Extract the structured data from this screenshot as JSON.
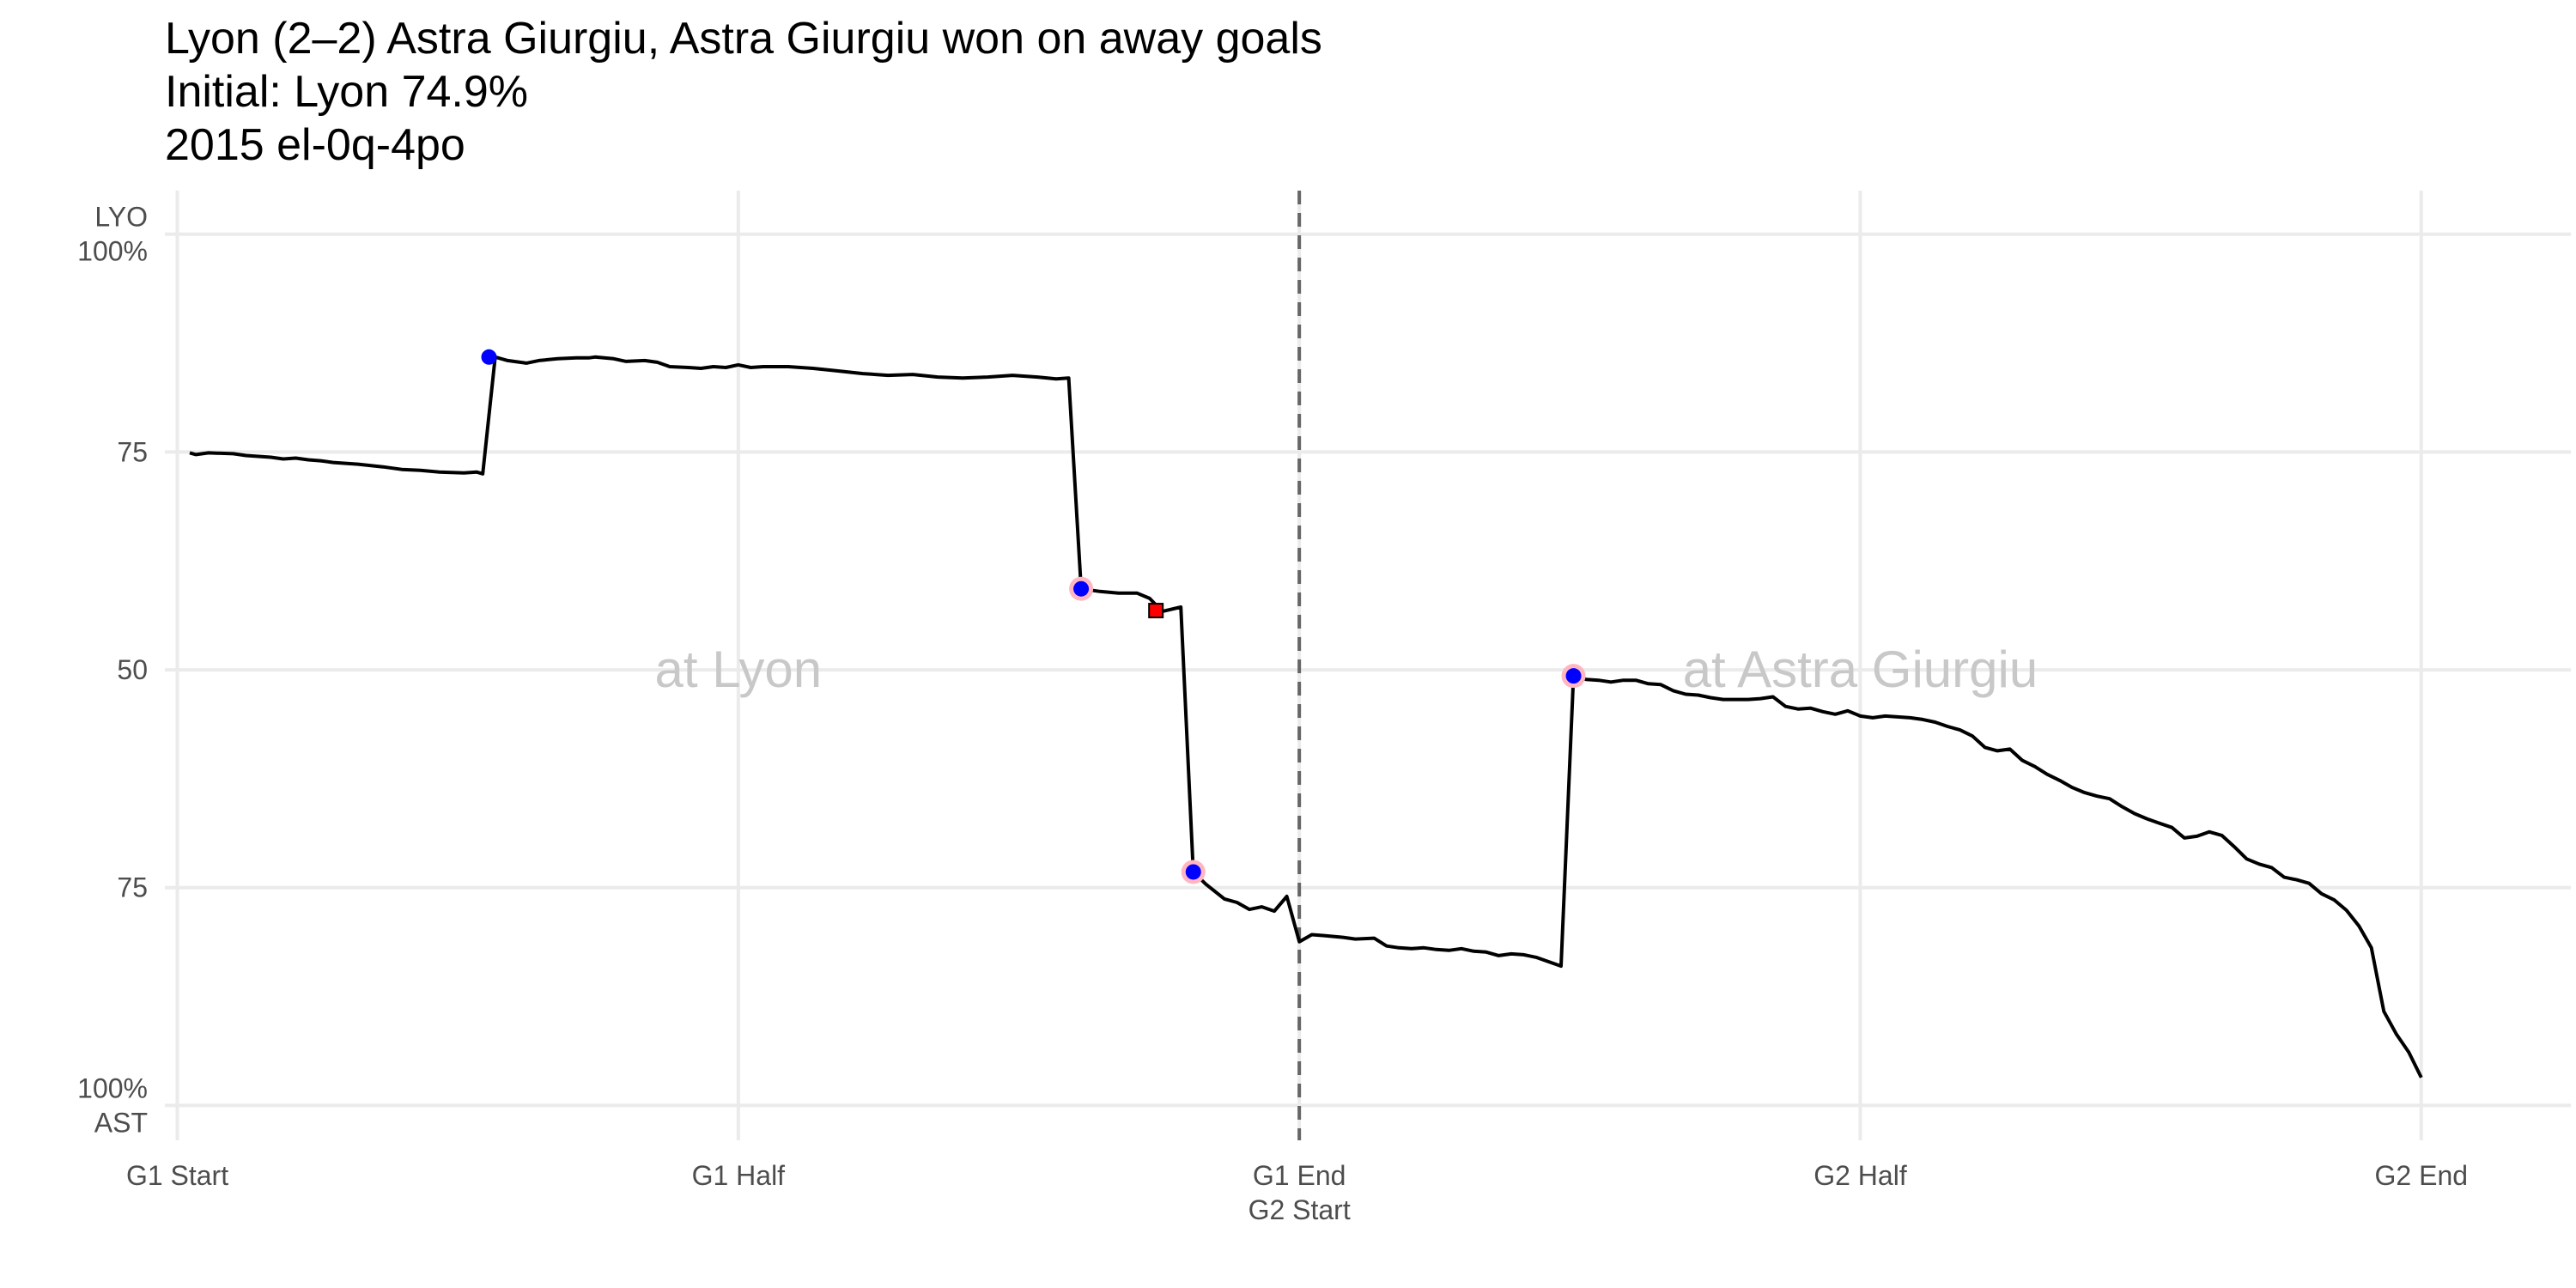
{
  "title_lines": [
    "Lyon (2–2) Astra Giurgiu, Astra Giurgiu won on away goals",
    "Initial: Lyon 74.9%",
    "2015 el-0q-4po"
  ],
  "chart_data": {
    "type": "line",
    "title": "Lyon (2–2) Astra Giurgiu, Astra Giurgiu won on away goals",
    "subtitle": [
      "Initial: Lyon 74.9%",
      "2015 el-0q-4po"
    ],
    "x_unit": "match minutes across two legs (0 = G1 Start, 90 = G1 End / G2 Start, 180 = G2 End)",
    "y_unit": "Lyon probability of advancing (%)",
    "xlim": [
      -1,
      192
    ],
    "ylim": [
      -4,
      105
    ],
    "grid": true,
    "legend": "none",
    "x_ticks": [
      {
        "x": 0,
        "lines": [
          "G1 Start"
        ]
      },
      {
        "x": 45,
        "lines": [
          "G1 Half"
        ]
      },
      {
        "x": 90,
        "lines": [
          "G1 End",
          "G2 Start"
        ]
      },
      {
        "x": 135,
        "lines": [
          "G2 Half"
        ]
      },
      {
        "x": 180,
        "lines": [
          "G2 End"
        ]
      }
    ],
    "y_ticks": [
      {
        "y": 100,
        "lines": [
          "LYO",
          "100%"
        ]
      },
      {
        "y": 75,
        "lines": [
          "75"
        ]
      },
      {
        "y": 50,
        "lines": [
          "50"
        ]
      },
      {
        "y": 25,
        "lines": [
          "75"
        ]
      },
      {
        "y": 0,
        "lines": [
          "100%",
          "AST"
        ]
      }
    ],
    "divider": {
      "x": 90,
      "style": "dashed"
    },
    "annotations": [
      {
        "text": "at Lyon",
        "x": 45,
        "y": 50
      },
      {
        "text": "at Astra Giurgiu",
        "x": 135,
        "y": 50
      }
    ],
    "series": [
      {
        "color": "#000000",
        "points": [
          [
            1,
            74.9
          ],
          [
            1.5,
            74.7
          ],
          [
            2.5,
            74.9
          ],
          [
            4.5,
            74.8
          ],
          [
            5.5,
            74.6
          ],
          [
            7.5,
            74.4
          ],
          [
            8.5,
            74.2
          ],
          [
            9.5,
            74.3
          ],
          [
            10.5,
            74.1
          ],
          [
            11.5,
            74.0
          ],
          [
            12.5,
            73.8
          ],
          [
            14.5,
            73.6
          ],
          [
            16.5,
            73.3
          ],
          [
            18,
            73.0
          ],
          [
            19.5,
            72.9
          ],
          [
            21,
            72.7
          ],
          [
            23,
            72.6
          ],
          [
            24,
            72.7
          ],
          [
            24.5,
            72.5
          ],
          [
            25.5,
            85.9
          ],
          [
            26.5,
            85.5
          ],
          [
            28,
            85.2
          ],
          [
            29,
            85.5
          ],
          [
            30.5,
            85.7
          ],
          [
            32,
            85.8
          ],
          [
            33,
            85.8
          ],
          [
            33.5,
            85.9
          ],
          [
            35,
            85.7
          ],
          [
            36,
            85.4
          ],
          [
            37.5,
            85.5
          ],
          [
            38.5,
            85.3
          ],
          [
            39.5,
            84.8
          ],
          [
            41,
            84.7
          ],
          [
            42,
            84.6
          ],
          [
            43,
            84.8
          ],
          [
            44,
            84.7
          ],
          [
            45,
            85.0
          ],
          [
            46,
            84.7
          ],
          [
            47,
            84.8
          ],
          [
            49,
            84.8
          ],
          [
            51,
            84.6
          ],
          [
            53,
            84.3
          ],
          [
            55,
            84.0
          ],
          [
            57,
            83.8
          ],
          [
            59,
            83.9
          ],
          [
            61,
            83.6
          ],
          [
            63,
            83.5
          ],
          [
            65,
            83.6
          ],
          [
            67,
            83.8
          ],
          [
            69,
            83.6
          ],
          [
            70.5,
            83.4
          ],
          [
            71.5,
            83.5
          ],
          [
            72.5,
            59.3
          ],
          [
            74,
            59.0
          ],
          [
            75.5,
            58.8
          ],
          [
            77,
            58.8
          ],
          [
            78,
            58.2
          ],
          [
            79,
            56.7
          ],
          [
            80.5,
            57.2
          ],
          [
            81.5,
            26.8
          ],
          [
            82.5,
            25.4
          ],
          [
            84,
            23.7
          ],
          [
            85,
            23.3
          ],
          [
            86,
            22.5
          ],
          [
            87,
            22.8
          ],
          [
            88,
            22.3
          ],
          [
            89,
            24.0
          ],
          [
            90,
            18.8
          ],
          [
            91,
            19.6
          ],
          [
            92,
            19.5
          ],
          [
            93.5,
            19.3
          ],
          [
            94.5,
            19.1
          ],
          [
            96,
            19.2
          ],
          [
            97,
            18.3
          ],
          [
            98,
            18.1
          ],
          [
            99,
            18.0
          ],
          [
            100,
            18.1
          ],
          [
            101,
            17.9
          ],
          [
            102,
            17.8
          ],
          [
            103,
            18.0
          ],
          [
            104,
            17.7
          ],
          [
            105,
            17.6
          ],
          [
            106,
            17.2
          ],
          [
            107,
            17.4
          ],
          [
            108,
            17.3
          ],
          [
            109,
            17.0
          ],
          [
            110,
            16.5
          ],
          [
            111,
            16.0
          ],
          [
            112,
            49.3
          ],
          [
            113,
            48.9
          ],
          [
            114,
            48.8
          ],
          [
            115,
            48.6
          ],
          [
            116,
            48.8
          ],
          [
            117,
            48.8
          ],
          [
            118,
            48.4
          ],
          [
            119,
            48.3
          ],
          [
            120,
            47.6
          ],
          [
            121,
            47.2
          ],
          [
            122,
            47.1
          ],
          [
            123,
            46.8
          ],
          [
            124,
            46.6
          ],
          [
            125,
            46.6
          ],
          [
            126,
            46.6
          ],
          [
            127,
            46.7
          ],
          [
            128,
            46.9
          ],
          [
            129,
            45.8
          ],
          [
            130,
            45.5
          ],
          [
            131,
            45.6
          ],
          [
            132,
            45.2
          ],
          [
            133,
            44.9
          ],
          [
            134,
            45.3
          ],
          [
            135,
            44.7
          ],
          [
            136,
            44.5
          ],
          [
            137,
            44.7
          ],
          [
            138,
            44.6
          ],
          [
            139,
            44.5
          ],
          [
            140,
            44.3
          ],
          [
            141,
            44.0
          ],
          [
            142,
            43.5
          ],
          [
            143,
            43.1
          ],
          [
            144,
            42.4
          ],
          [
            145,
            41.1
          ],
          [
            146,
            40.7
          ],
          [
            147,
            40.9
          ],
          [
            148,
            39.6
          ],
          [
            149,
            38.9
          ],
          [
            150,
            38.0
          ],
          [
            151,
            37.3
          ],
          [
            152,
            36.5
          ],
          [
            153,
            35.9
          ],
          [
            154,
            35.5
          ],
          [
            155,
            35.2
          ],
          [
            156,
            34.3
          ],
          [
            157,
            33.5
          ],
          [
            158,
            32.9
          ],
          [
            159,
            32.4
          ],
          [
            160,
            31.9
          ],
          [
            161,
            30.7
          ],
          [
            162,
            30.9
          ],
          [
            163,
            31.4
          ],
          [
            164,
            31.0
          ],
          [
            165,
            29.7
          ],
          [
            166,
            28.3
          ],
          [
            167,
            27.7
          ],
          [
            168,
            27.3
          ],
          [
            169,
            26.2
          ],
          [
            170,
            25.9
          ],
          [
            171,
            25.5
          ],
          [
            172,
            24.3
          ],
          [
            173,
            23.6
          ],
          [
            174,
            22.4
          ],
          [
            175,
            20.6
          ],
          [
            176,
            18.1
          ],
          [
            177,
            10.8
          ],
          [
            178,
            8.2
          ],
          [
            179,
            6.1
          ],
          [
            180,
            3.2
          ]
        ]
      }
    ],
    "goal_markers": [
      {
        "x": 25,
        "y": 85.9,
        "fill": "#0000ff",
        "ring": "none"
      },
      {
        "x": 72.5,
        "y": 59.3,
        "fill": "#0000ff",
        "ring": "#ffb6c1"
      },
      {
        "x": 81.5,
        "y": 26.8,
        "fill": "#0000ff",
        "ring": "#ffb6c1"
      },
      {
        "x": 112,
        "y": 49.3,
        "fill": "#0000ff",
        "ring": "#ffb6c1"
      }
    ],
    "card_markers": [
      {
        "x": 78.5,
        "y": 56.8,
        "fill": "#ff0000"
      }
    ]
  }
}
